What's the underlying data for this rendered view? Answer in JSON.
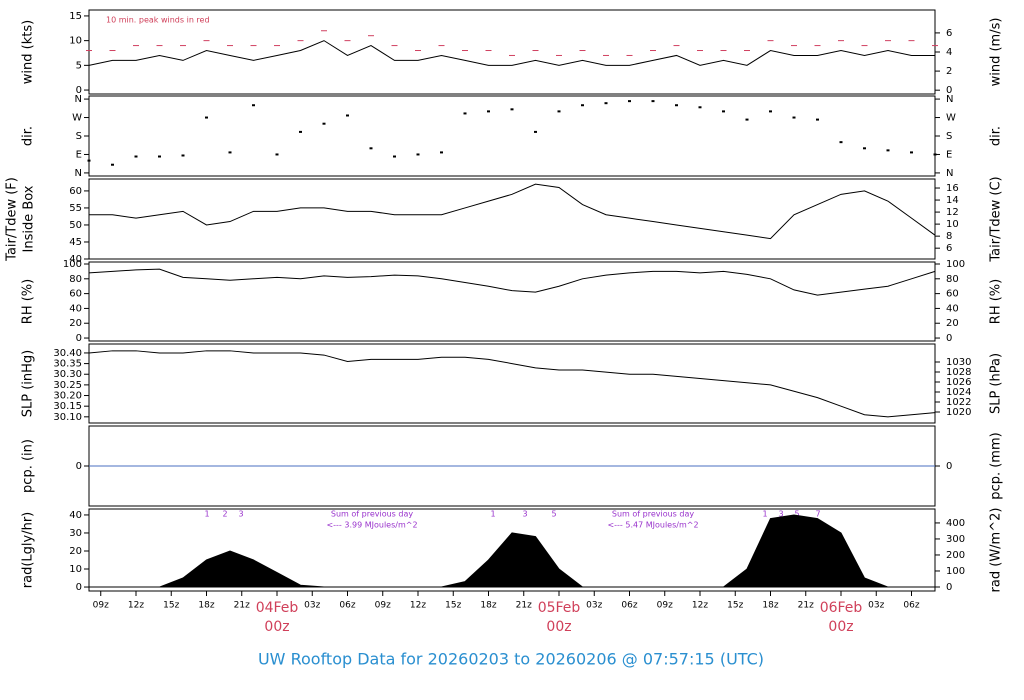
{
  "footer_title": "UW Rooftop Data for 20260203  to  20260206 @ 07:57:15  (UTC)",
  "chart_data": [
    {
      "type": "line",
      "ylabel": "wind (kts)",
      "y2label": "wind (m/s)",
      "annotation": "10 min. peak winds in red",
      "xlim": [
        -16,
        56
      ],
      "ylim": [
        -0.8,
        16.2
      ],
      "yticks": [
        0,
        5,
        10,
        15
      ],
      "y2lim": [
        -0.4,
        8.4
      ],
      "y2ticks": [
        0,
        2,
        4,
        6
      ],
      "x": [
        -16,
        -14,
        -12,
        -10,
        -8,
        -6,
        -4,
        -2,
        0,
        2,
        4,
        6,
        8,
        10,
        12,
        14,
        16,
        18,
        20,
        22,
        24,
        26,
        28,
        30,
        32,
        34,
        36,
        38,
        40,
        42,
        44,
        46,
        48,
        50,
        52,
        54,
        56
      ],
      "series": [
        {
          "color": "#000000",
          "style": "line",
          "values": [
            5,
            6,
            6,
            7,
            6,
            8,
            7,
            6,
            7,
            8,
            10,
            7,
            9,
            6,
            6,
            7,
            6,
            5,
            5,
            6,
            5,
            6,
            5,
            5,
            6,
            7,
            5,
            6,
            5,
            8,
            7,
            7,
            8,
            7,
            8,
            7,
            7
          ]
        },
        {
          "color": "#d04060",
          "style": "dash",
          "values": [
            8,
            8,
            9,
            9,
            9,
            10,
            9,
            9,
            9,
            10,
            12,
            10,
            11,
            9,
            8,
            9,
            8,
            8,
            7,
            8,
            7,
            8,
            7,
            7,
            8,
            9,
            8,
            8,
            8,
            10,
            9,
            9,
            10,
            9,
            10,
            10,
            9
          ]
        }
      ]
    },
    {
      "type": "scatter",
      "ylabel": "dir.",
      "y2label": "dir.",
      "xlim": [
        -16,
        56
      ],
      "ylim": [
        -15,
        375
      ],
      "yticks": [
        {
          "value": 0,
          "label": "N"
        },
        {
          "value": 90,
          "label": "E"
        },
        {
          "value": 180,
          "label": "S"
        },
        {
          "value": 270,
          "label": "W"
        },
        {
          "value": 360,
          "label": "N"
        }
      ],
      "y2lim": [
        -15,
        375
      ],
      "y2ticks": [
        {
          "value": 0,
          "label": "N"
        },
        {
          "value": 90,
          "label": "E"
        },
        {
          "value": 180,
          "label": "S"
        },
        {
          "value": 270,
          "label": "W"
        },
        {
          "value": 360,
          "label": "N"
        }
      ],
      "x": [
        -16,
        -14,
        -12,
        -10,
        -8,
        -6,
        -4,
        -2,
        0,
        2,
        4,
        6,
        8,
        10,
        12,
        14,
        16,
        18,
        20,
        22,
        24,
        26,
        28,
        30,
        32,
        34,
        36,
        38,
        40,
        42,
        44,
        46,
        48,
        50,
        52,
        54,
        56
      ],
      "series": [
        {
          "color": "#000000",
          "values": [
            60,
            40,
            80,
            80,
            85,
            270,
            100,
            330,
            90,
            200,
            240,
            280,
            120,
            80,
            90,
            100,
            290,
            300,
            310,
            200,
            300,
            330,
            340,
            350,
            350,
            330,
            320,
            300,
            260,
            300,
            270,
            260,
            150,
            120,
            110,
            100,
            90
          ]
        }
      ]
    },
    {
      "type": "line",
      "ylabel": [
        "Tair/Tdew (F)",
        "Inside Box"
      ],
      "y2label": "Tair/Tdew (C)",
      "xlim": [
        -16,
        56
      ],
      "ylim": [
        40,
        63.5
      ],
      "yticks": [
        40,
        45,
        50,
        55,
        60
      ],
      "y2lim": [
        4.2,
        17.5
      ],
      "y2ticks": [
        6,
        8,
        10,
        12,
        14,
        16
      ],
      "x": [
        -16,
        -14,
        -12,
        -10,
        -8,
        -6,
        -4,
        -2,
        0,
        2,
        4,
        6,
        8,
        10,
        12,
        14,
        16,
        18,
        20,
        22,
        24,
        26,
        28,
        30,
        32,
        34,
        36,
        38,
        40,
        42,
        44,
        46,
        48,
        50,
        52,
        54,
        56
      ],
      "series": [
        {
          "color": "#000000",
          "style": "line",
          "values": [
            53,
            53,
            52,
            53,
            54,
            50,
            51,
            54,
            54,
            55,
            55,
            54,
            54,
            53,
            53,
            53,
            55,
            57,
            59,
            62,
            61,
            56,
            53,
            52,
            51,
            50,
            49,
            48,
            47,
            46,
            53,
            56,
            59,
            60,
            57,
            52,
            47
          ]
        }
      ]
    },
    {
      "type": "line",
      "ylabel": "RH (%)",
      "y2label": "RH (%)",
      "xlim": [
        -16,
        56
      ],
      "ylim": [
        -4,
        102.7
      ],
      "yticks": [
        0,
        20,
        40,
        60,
        80,
        100
      ],
      "y2lim": [
        -4,
        102.7
      ],
      "y2ticks": [
        0,
        20,
        40,
        60,
        80,
        100
      ],
      "x": [
        -16,
        -14,
        -12,
        -10,
        -8,
        -6,
        -4,
        -2,
        0,
        2,
        4,
        6,
        8,
        10,
        12,
        14,
        16,
        18,
        20,
        22,
        24,
        26,
        28,
        30,
        32,
        34,
        36,
        38,
        40,
        42,
        44,
        46,
        48,
        50,
        52,
        54,
        56
      ],
      "series": [
        {
          "color": "#000000",
          "style": "line",
          "values": [
            88,
            90,
            92,
            93,
            82,
            80,
            78,
            80,
            82,
            80,
            84,
            82,
            83,
            85,
            84,
            80,
            75,
            70,
            64,
            62,
            70,
            80,
            85,
            88,
            90,
            90,
            88,
            90,
            86,
            80,
            65,
            58,
            62,
            66,
            70,
            80,
            90
          ]
        }
      ]
    },
    {
      "type": "line",
      "ylabel": "SLP (inHg)",
      "y2label": "SLP (hPa)",
      "xlim": [
        -16,
        56
      ],
      "ylim": [
        30.071,
        30.442
      ],
      "yticks": [
        {
          "value": 30.1,
          "label": "30.10"
        },
        {
          "value": 30.15,
          "label": "30.15"
        },
        {
          "value": 30.2,
          "label": "30.20"
        },
        {
          "value": 30.25,
          "label": "30.25"
        },
        {
          "value": 30.3,
          "label": "30.30"
        },
        {
          "value": 30.35,
          "label": "30.35"
        },
        {
          "value": 30.4,
          "label": "30.40"
        }
      ],
      "y2lim": [
        1017.8,
        1033.6
      ],
      "y2ticks": [
        1020,
        1022,
        1024,
        1026,
        1028,
        1030
      ],
      "x": [
        -16,
        -14,
        -12,
        -10,
        -8,
        -6,
        -4,
        -2,
        0,
        2,
        4,
        6,
        8,
        10,
        12,
        14,
        16,
        18,
        20,
        22,
        24,
        26,
        28,
        30,
        32,
        34,
        36,
        38,
        40,
        42,
        44,
        46,
        48,
        50,
        52,
        54,
        56
      ],
      "series": [
        {
          "color": "#000000",
          "style": "line",
          "values": [
            30.4,
            30.41,
            30.41,
            30.4,
            30.4,
            30.41,
            30.41,
            30.4,
            30.4,
            30.4,
            30.39,
            30.36,
            30.37,
            30.37,
            30.37,
            30.38,
            30.38,
            30.37,
            30.35,
            30.33,
            30.32,
            30.32,
            30.31,
            30.3,
            30.3,
            30.29,
            30.28,
            30.27,
            30.26,
            30.25,
            30.22,
            30.19,
            30.15,
            30.11,
            30.1,
            30.11,
            30.12
          ]
        }
      ]
    },
    {
      "type": "line",
      "ylabel": "pcp. (in)",
      "y2label": "pcp. (mm)",
      "xlim": [
        -16,
        56
      ],
      "ylim": [
        -1,
        1
      ],
      "yticks": [
        0
      ],
      "y2lim": [
        -1,
        1
      ],
      "y2ticks": [
        0
      ],
      "x": [
        -16,
        -14,
        -12,
        -10,
        -8,
        -6,
        -4,
        -2,
        0,
        2,
        4,
        6,
        8,
        10,
        12,
        14,
        16,
        18,
        20,
        22,
        24,
        26,
        28,
        30,
        32,
        34,
        36,
        38,
        40,
        42,
        44,
        46,
        48,
        50,
        52,
        54,
        56
      ],
      "series": [
        {
          "color": "#4a6fc0",
          "style": "line",
          "values": [
            0,
            0,
            0,
            0,
            0,
            0,
            0,
            0,
            0,
            0,
            0,
            0,
            0,
            0,
            0,
            0,
            0,
            0,
            0,
            0,
            0,
            0,
            0,
            0,
            0,
            0,
            0,
            0,
            0,
            0,
            0,
            0,
            0,
            0,
            0,
            0,
            0
          ]
        }
      ]
    },
    {
      "type": "area",
      "ylabel": "rad(Lgly/hr)",
      "y2label": "rad (W/m^2)",
      "annotations": [
        "1",
        "2",
        "3",
        "Sum of previous day",
        "<--- 3.99 MJoules/m^2",
        "1",
        "3",
        "5",
        "Sum of previous day",
        "<--- 5.47 MJoules/m^2",
        "1",
        "3",
        "5",
        "7"
      ],
      "xlim": [
        -16,
        56
      ],
      "ylim": [
        -2.2,
        43.3
      ],
      "yticks": [
        0,
        10,
        20,
        30,
        40
      ],
      "y2lim": [
        -25,
        487
      ],
      "y2ticks": [
        0,
        100,
        200,
        300,
        400
      ],
      "xticks": [
        {
          "value": -15,
          "label": "09z"
        },
        {
          "value": -12,
          "label": "12z"
        },
        {
          "value": -9,
          "label": "15z"
        },
        {
          "value": -6,
          "label": "18z"
        },
        {
          "value": -3,
          "label": "21z"
        },
        {
          "value": 0,
          "label": "04Feb",
          "sublabel": "00z"
        },
        {
          "value": 3,
          "label": "03z"
        },
        {
          "value": 6,
          "label": "06z"
        },
        {
          "value": 9,
          "label": "09z"
        },
        {
          "value": 12,
          "label": "12z"
        },
        {
          "value": 15,
          "label": "15z"
        },
        {
          "value": 18,
          "label": "18z"
        },
        {
          "value": 21,
          "label": "21z"
        },
        {
          "value": 24,
          "label": "05Feb",
          "sublabel": "00z"
        },
        {
          "value": 27,
          "label": "03z"
        },
        {
          "value": 30,
          "label": "06z"
        },
        {
          "value": 33,
          "label": "09z"
        },
        {
          "value": 36,
          "label": "12z"
        },
        {
          "value": 39,
          "label": "15z"
        },
        {
          "value": 42,
          "label": "18z"
        },
        {
          "value": 45,
          "label": "21z"
        },
        {
          "value": 48,
          "label": "06Feb",
          "sublabel": "00z"
        },
        {
          "value": 51,
          "label": "03z"
        },
        {
          "value": 54,
          "label": "06z"
        }
      ],
      "x": [
        -16,
        -14,
        -12,
        -10,
        -8,
        -6,
        -4,
        -2,
        0,
        2,
        4,
        6,
        8,
        10,
        12,
        14,
        16,
        18,
        20,
        22,
        24,
        26,
        28,
        30,
        32,
        34,
        36,
        38,
        40,
        42,
        44,
        46,
        48,
        50,
        52,
        54,
        56
      ],
      "series": [
        {
          "color": "#000000",
          "values": [
            0,
            0,
            0,
            0,
            5,
            15,
            20,
            15,
            8,
            1,
            0,
            0,
            0,
            0,
            0,
            0,
            3,
            15,
            30,
            28,
            10,
            0,
            0,
            0,
            0,
            0,
            0,
            0,
            10,
            38,
            40,
            38,
            30,
            5,
            0,
            0,
            0
          ]
        }
      ]
    }
  ]
}
